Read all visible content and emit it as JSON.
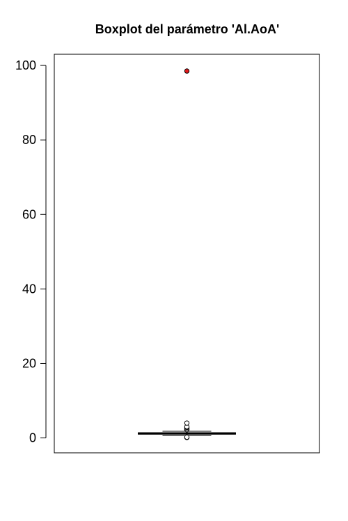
{
  "chart_data": {
    "type": "boxplot",
    "title": "Boxplot del parámetro 'Al.AoA'",
    "xlabel": "",
    "ylabel": "",
    "ylim": [
      -4,
      103
    ],
    "yticks": [
      0,
      20,
      40,
      60,
      80,
      100
    ],
    "ytick_labels": [
      "0",
      "20",
      "40",
      "60",
      "80",
      "100"
    ],
    "box": {
      "whisker_low": 0.6,
      "q1": 1.0,
      "median": 1.2,
      "q3": 1.4,
      "whisker_high": 1.8
    },
    "outliers": [
      0.1,
      0.2,
      2.2,
      2.5,
      2.8,
      3.0,
      4.0
    ],
    "highlighted_outlier": 98.5,
    "colors": {
      "highlight": "#e41a1c",
      "box_line": "#000000",
      "frame": "#000000"
    }
  }
}
